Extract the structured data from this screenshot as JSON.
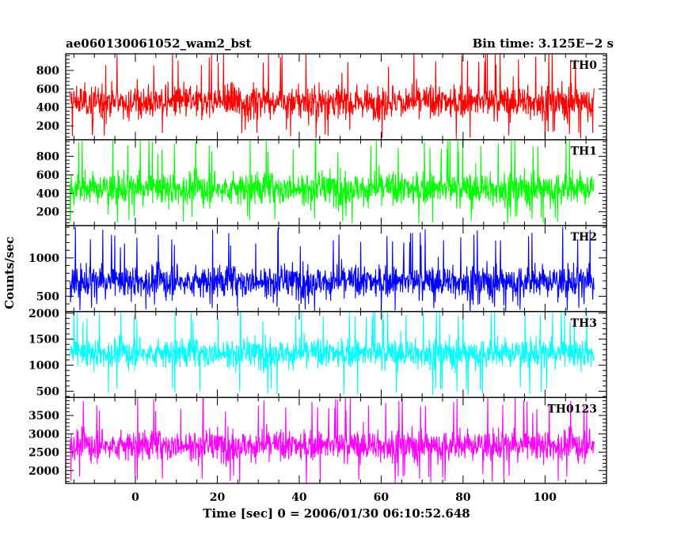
{
  "chart_data": {
    "type": "line",
    "title_left": "ae060130061052_wam2_bst",
    "title_right": "Bin time: 3.125E−2 s",
    "xlabel": "Time [sec] 0 = 2006/01/30 06:10:52.648",
    "ylabel": "Counts/sec",
    "xlim": [
      -17,
      115
    ],
    "xticks": [
      0,
      20,
      40,
      60,
      80,
      100
    ],
    "xtick_labels": [
      "0",
      "20",
      "40",
      "60",
      "80",
      "100"
    ],
    "data_x_range": [
      -16,
      112
    ],
    "grid": false,
    "panels": [
      {
        "name": "TH0",
        "color": "#ff0000",
        "ylim": [
          50,
          980
        ],
        "yticks": [
          200,
          400,
          600,
          800
        ],
        "ytick_labels": [
          "200",
          "400",
          "600",
          "800"
        ],
        "mean": 460,
        "spread": 170,
        "min": 60,
        "max": 975
      },
      {
        "name": "TH1",
        "color": "#00ff00",
        "ylim": [
          50,
          980
        ],
        "yticks": [
          200,
          400,
          600,
          800
        ],
        "ytick_labels": [
          "200",
          "400",
          "600",
          "800"
        ],
        "mean": 450,
        "spread": 170,
        "min": 70,
        "max": 975
      },
      {
        "name": "TH2",
        "color": "#0000ff",
        "ylim": [
          300,
          1420
        ],
        "yticks": [
          500,
          1000
        ],
        "ytick_labels": [
          "500",
          "1000"
        ],
        "mean": 690,
        "spread": 200,
        "min": 300,
        "max": 1410
      },
      {
        "name": "TH3",
        "color": "#00ffff",
        "ylim": [
          380,
          2030
        ],
        "yticks": [
          500,
          1000,
          1500,
          2000
        ],
        "ytick_labels": [
          "500",
          "1000",
          "1500",
          "2000"
        ],
        "mean": 1230,
        "spread": 270,
        "min": 420,
        "max": 2030
      },
      {
        "name": "TH0123",
        "color": "#ff00ff",
        "ylim": [
          1650,
          3990
        ],
        "yticks": [
          2000,
          2500,
          3000,
          3500
        ],
        "ytick_labels": [
          "2000",
          "2500",
          "3000",
          "3500"
        ],
        "mean": 2680,
        "spread": 400,
        "min": 1660,
        "max": 3990
      }
    ]
  }
}
